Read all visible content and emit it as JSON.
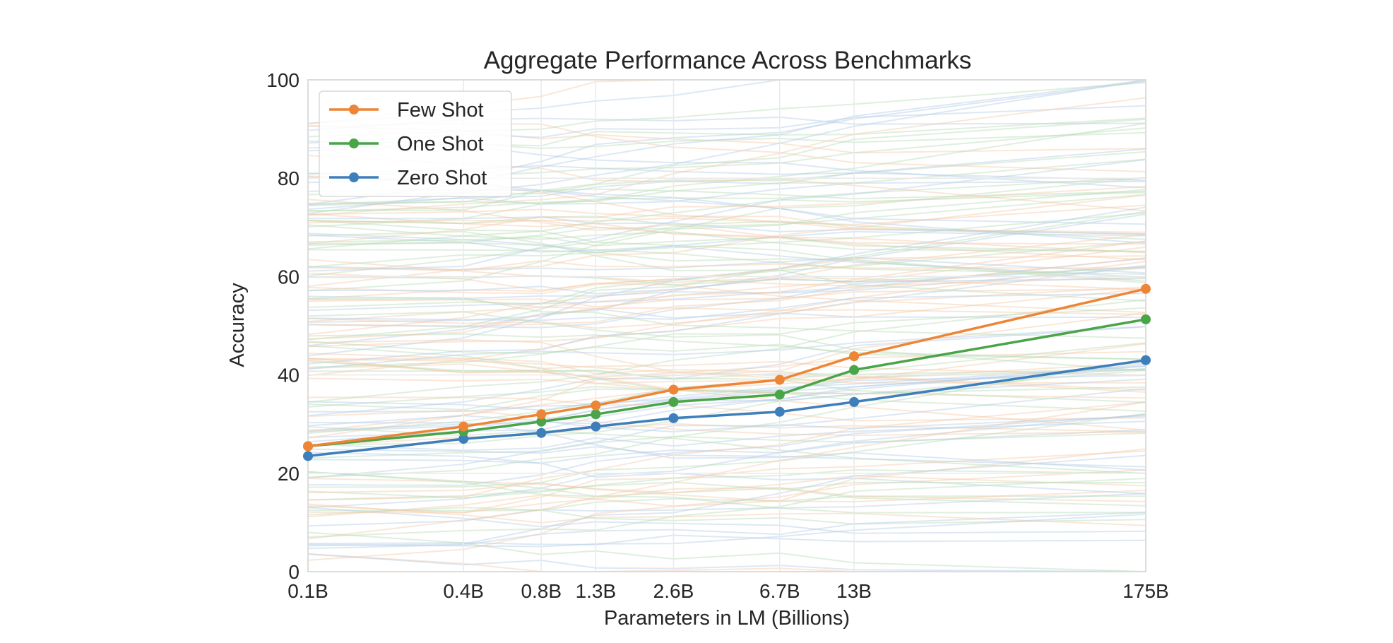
{
  "chart_data": {
    "type": "line",
    "title": "Aggregate Performance Across Benchmarks",
    "xlabel": "Parameters in LM (Billions)",
    "ylabel": "Accuracy",
    "x": [
      0.1,
      0.4,
      0.8,
      1.3,
      2.6,
      6.7,
      13,
      175
    ],
    "categories": [
      "0.1B",
      "0.4B",
      "0.8B",
      "1.3B",
      "2.6B",
      "6.7B",
      "13B",
      "175B"
    ],
    "xscale": "log",
    "ylim": [
      0,
      100
    ],
    "yticks": [
      0,
      20,
      40,
      60,
      80,
      100
    ],
    "grid": true,
    "legend_position": "top-left",
    "series": [
      {
        "name": "Few Shot",
        "color": "#ee8536",
        "values": [
          25.5,
          29.5,
          32,
          33.8,
          37,
          39,
          43.8,
          57.5
        ]
      },
      {
        "name": "One Shot",
        "color": "#4aa448",
        "values": [
          25.5,
          28.5,
          30.5,
          32,
          34.5,
          36,
          41,
          51.3
        ]
      },
      {
        "name": "Zero Shot",
        "color": "#3d7ebb",
        "values": [
          23.5,
          27,
          28.2,
          29.5,
          31.2,
          32.5,
          34.5,
          43
        ]
      }
    ]
  }
}
